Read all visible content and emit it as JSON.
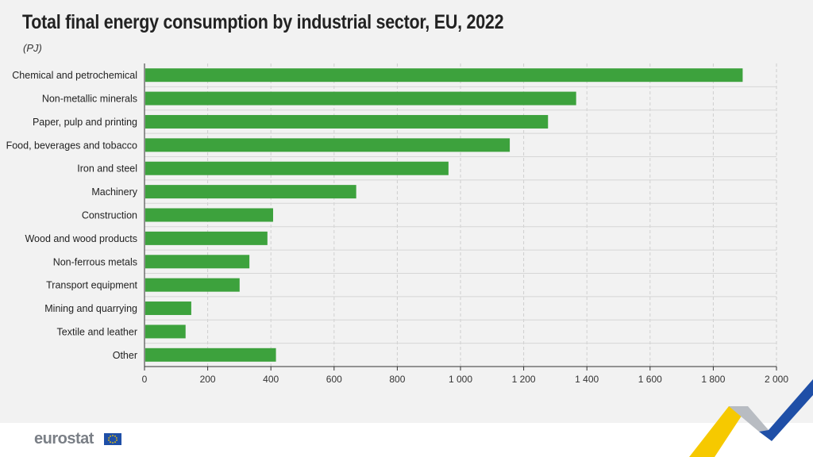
{
  "header": {
    "title": "Total final energy consumption by industrial sector, EU, 2022",
    "unit": "(PJ)"
  },
  "brand": {
    "logo_text": "eurostat",
    "colors": {
      "bar": "#3da23d",
      "logo_text": "#7a7f86",
      "eu_blue": "#1f4fa7",
      "eu_yellow": "#f6c900"
    }
  },
  "chart_data": {
    "type": "bar",
    "orientation": "horizontal",
    "categories": [
      "Chemical and petrochemical",
      "Non-metallic minerals",
      "Paper, pulp and printing",
      "Food, beverages and tobacco",
      "Iron and steel",
      "Machinery",
      "Construction",
      "Wood and wood products",
      "Non-ferrous metals",
      "Transport equipment",
      "Mining and quarrying",
      "Textile and leather",
      "Other"
    ],
    "values": [
      1893,
      1366,
      1277,
      1156,
      962,
      670,
      407,
      389,
      332,
      301,
      148,
      130,
      416
    ],
    "xlim": [
      0,
      2000
    ],
    "xticks": [
      0,
      200,
      400,
      600,
      800,
      1000,
      1200,
      1400,
      1600,
      1800,
      2000
    ],
    "xtick_labels": [
      "0",
      "200",
      "400",
      "600",
      "800",
      "1 000",
      "1 200",
      "1 400",
      "1 600",
      "1 800",
      "2 000"
    ],
    "grid": true,
    "legend": "none"
  }
}
